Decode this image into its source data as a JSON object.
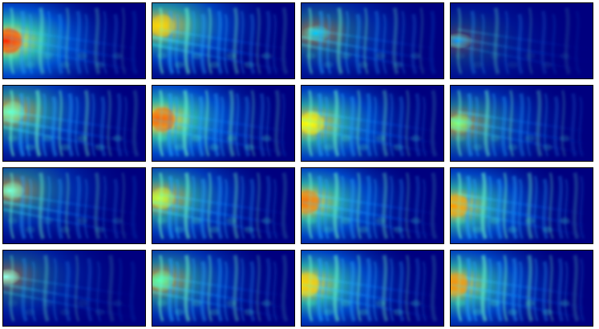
{
  "figure": {
    "rows": 4,
    "cols": 4,
    "colormap": "jet",
    "background_color": "#00007f"
  },
  "tiles": [
    {
      "intensity": 1.0,
      "hotspot": [
        0.02,
        0.5
      ],
      "hot_color": "#ff2a00",
      "fringe": 0.55,
      "wake": 0.6
    },
    {
      "intensity": 0.8,
      "hotspot": [
        0.05,
        0.3
      ],
      "hot_color": "#ffd500",
      "fringe": 0.75,
      "wake": 0.65
    },
    {
      "intensity": 0.45,
      "hotspot": [
        0.1,
        0.4
      ],
      "hot_color": "#00c8ff",
      "fringe": 0.6,
      "wake": 0.55
    },
    {
      "intensity": 0.25,
      "hotspot": [
        0.05,
        0.5
      ],
      "hot_color": "#0088ff",
      "fringe": 0.3,
      "wake": 0.35
    },
    {
      "intensity": 0.7,
      "hotspot": [
        0.05,
        0.35
      ],
      "hot_color": "#66ffc8",
      "fringe": 0.8,
      "wake": 0.65
    },
    {
      "intensity": 0.95,
      "hotspot": [
        0.05,
        0.45
      ],
      "hot_color": "#ff5a00",
      "fringe": 0.85,
      "wake": 0.7
    },
    {
      "intensity": 0.85,
      "hotspot": [
        0.05,
        0.5
      ],
      "hot_color": "#ffff00",
      "fringe": 0.75,
      "wake": 0.7
    },
    {
      "intensity": 0.6,
      "hotspot": [
        0.05,
        0.5
      ],
      "hot_color": "#7bff7b",
      "fringe": 0.65,
      "wake": 0.6
    },
    {
      "intensity": 0.55,
      "hotspot": [
        0.05,
        0.3
      ],
      "hot_color": "#6fffd8",
      "fringe": 0.55,
      "wake": 0.55
    },
    {
      "intensity": 0.75,
      "hotspot": [
        0.05,
        0.4
      ],
      "hot_color": "#bfff3f",
      "fringe": 0.8,
      "wake": 0.7
    },
    {
      "intensity": 0.9,
      "hotspot": [
        0.02,
        0.45
      ],
      "hot_color": "#ff6a00",
      "fringe": 0.75,
      "wake": 0.75
    },
    {
      "intensity": 0.85,
      "hotspot": [
        0.02,
        0.5
      ],
      "hot_color": "#ff9a00",
      "fringe": 0.85,
      "wake": 0.7
    },
    {
      "intensity": 0.4,
      "hotspot": [
        0.02,
        0.35
      ],
      "hot_color": "#8fffef",
      "fringe": 0.35,
      "wake": 0.4
    },
    {
      "intensity": 0.65,
      "hotspot": [
        0.05,
        0.4
      ],
      "hot_color": "#4fffb0",
      "fringe": 0.75,
      "wake": 0.6
    },
    {
      "intensity": 0.9,
      "hotspot": [
        0.02,
        0.45
      ],
      "hot_color": "#ffd000",
      "fringe": 0.8,
      "wake": 0.7
    },
    {
      "intensity": 0.85,
      "hotspot": [
        0.02,
        0.45
      ],
      "hot_color": "#ff8a00",
      "fringe": 0.85,
      "wake": 0.7
    }
  ]
}
